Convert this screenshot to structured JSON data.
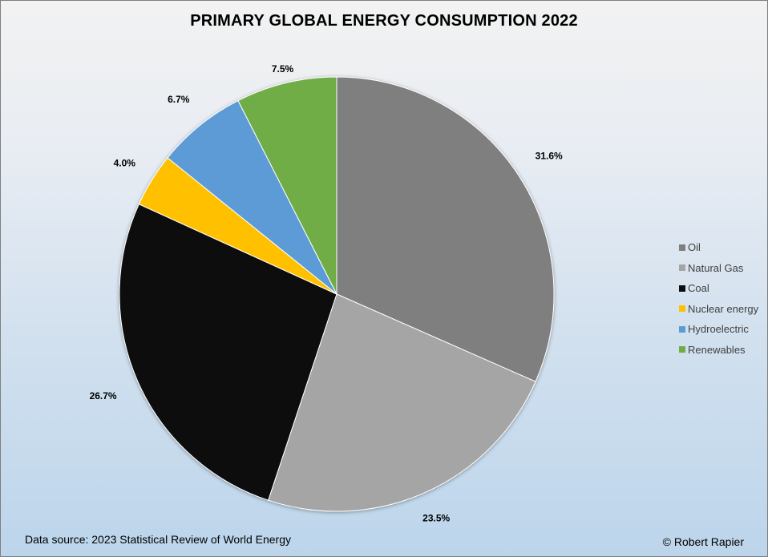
{
  "chart_data": {
    "type": "pie",
    "title": "PRIMARY GLOBAL ENERGY CONSUMPTION 2022",
    "categories": [
      "Oil",
      "Natural Gas",
      "Coal",
      "Nuclear energy",
      "Hydroelectric",
      "Renewables"
    ],
    "values": [
      31.6,
      23.5,
      26.7,
      4.0,
      6.7,
      7.5
    ],
    "labels": [
      "31.6%",
      "23.5%",
      "26.7%",
      "4.0%",
      "6.7%",
      "7.5%"
    ],
    "colors": [
      "#7f7f7f",
      "#a5a5a5",
      "#0d0d0d",
      "#ffc000",
      "#5b9bd5",
      "#70ad47"
    ],
    "legend_position": "right"
  },
  "footer": {
    "source": "Data source: 2023 Statistical Review of World Energy",
    "credit": "© Robert Rapier"
  }
}
